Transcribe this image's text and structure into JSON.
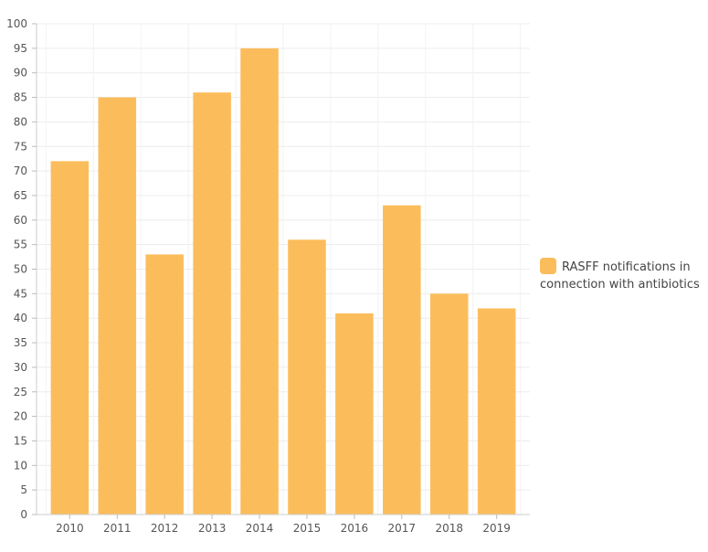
{
  "chart_data": {
    "type": "bar",
    "categories": [
      "2010",
      "2011",
      "2012",
      "2013",
      "2014",
      "2015",
      "2016",
      "2017",
      "2018",
      "2019"
    ],
    "series": [
      {
        "name": "RASFF notifications in connection with antibiotics",
        "values": [
          72,
          85,
          53,
          86,
          95,
          56,
          41,
          63,
          45,
          42
        ],
        "color": "#fbbd5c"
      }
    ],
    "ylim": [
      0,
      100
    ],
    "ytick_step": 5,
    "grid": true,
    "legend_position": "right"
  },
  "legend": {
    "label": "RASFF notifications in connection with antibiotics",
    "color": "#fbbd5c"
  }
}
